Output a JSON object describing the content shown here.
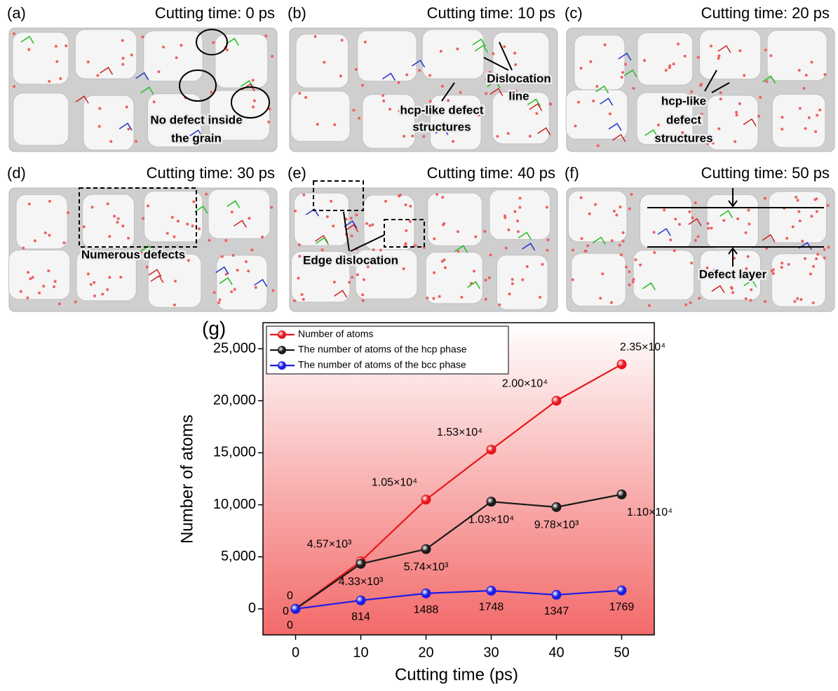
{
  "panels": [
    {
      "label": "(a)",
      "title": "Cutting time: 0 ps",
      "notes": [
        [
          "No defect inside",
          "the grain"
        ]
      ]
    },
    {
      "label": "(b)",
      "title": "Cutting time: 10 ps",
      "notes": [
        [
          "Dislocation",
          "line"
        ],
        [
          "hcp-like defect",
          "structures"
        ]
      ]
    },
    {
      "label": "(c)",
      "title": "Cutting time: 20 ps",
      "notes": [
        [
          "hcp-like",
          "defect",
          "structures"
        ]
      ]
    },
    {
      "label": "(d)",
      "title": "Cutting time: 30 ps",
      "notes": [
        [
          "Numerous defects"
        ]
      ]
    },
    {
      "label": "(e)",
      "title": "Cutting time: 40 ps",
      "notes": [
        [
          "Edge dislocation"
        ]
      ]
    },
    {
      "label": "(f)",
      "title": "Cutting time: 50 ps",
      "notes": [
        [
          "Defect layer"
        ]
      ]
    }
  ],
  "chart_data": {
    "type": "line",
    "label": "(g)",
    "x_label": "Cutting time (ps)",
    "y_label": "Number of atoms",
    "x": [
      0,
      10,
      20,
      30,
      40,
      50
    ],
    "series": [
      {
        "name": "Number of atoms",
        "color": "#e8161b",
        "values": [
          0,
          4570,
          10500,
          15300,
          20000,
          23500
        ],
        "value_labels": [
          "0",
          "4.57×10³",
          "1.05×10⁴",
          "1.53×10⁴",
          "2.00×10⁴",
          "2.35×10⁴"
        ]
      },
      {
        "name": "The number of atoms of the hcp phase",
        "color": "#1a1a1a",
        "values": [
          0,
          4330,
          5740,
          10300,
          9780,
          11000
        ],
        "value_labels": [
          "0",
          "4.33×10³",
          "5.74×10³",
          "1.03×10⁴",
          "9.78×10³",
          "1.10×10⁴"
        ]
      },
      {
        "name": "The number of atoms of the bcc phase",
        "color": "#1c1ce6",
        "values": [
          0,
          814,
          1488,
          1748,
          1347,
          1769
        ]
      }
    ],
    "xlim": [
      -5,
      55
    ],
    "ylim": [
      -2500,
      27500
    ],
    "xticks": [
      0,
      10,
      20,
      30,
      40,
      50
    ],
    "yticks": [
      0,
      {
        "value": 5000,
        "label": "5,000"
      },
      {
        "value": 10000,
        "label": "10,000"
      },
      {
        "value": 15000,
        "label": "15,000"
      },
      {
        "value": 20000,
        "label": "20,000"
      },
      {
        "value": 25000,
        "label": "25,000"
      }
    ],
    "legend": "upper left"
  }
}
